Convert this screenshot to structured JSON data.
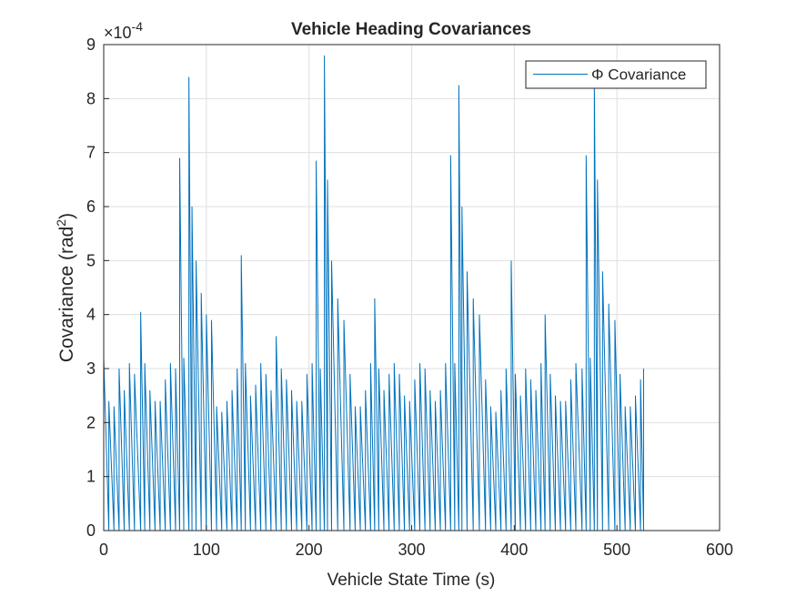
{
  "chart_data": {
    "type": "line",
    "title": "Vehicle Heading Covariances",
    "xlabel": "Vehicle State Time (s)",
    "ylabel": {
      "text": "Covariance (rad",
      "sup": "2",
      "end": ")"
    },
    "y_exponent": {
      "base": "×10",
      "power": "-4"
    },
    "xlim": [
      0,
      600
    ],
    "xticks": [
      0,
      100,
      200,
      300,
      400,
      500,
      600
    ],
    "ylim": [
      0,
      9
    ],
    "yticks": [
      0,
      1,
      2,
      3,
      4,
      5,
      6,
      7,
      8,
      9
    ],
    "grid": true,
    "legend": "northeast",
    "x": [
      0,
      0,
      5,
      5,
      10,
      10,
      15,
      15,
      20,
      20,
      25,
      25,
      30,
      30,
      36,
      36,
      40,
      40,
      45,
      45,
      50,
      50,
      55,
      55,
      60,
      60,
      65,
      65,
      70,
      70,
      74,
      74,
      78,
      78,
      83,
      83,
      86,
      86,
      90,
      90,
      95,
      95,
      100,
      100,
      105,
      105,
      110,
      110,
      115,
      115,
      120,
      120,
      125,
      125,
      130,
      130,
      134,
      134,
      138,
      138,
      143,
      143,
      148,
      148,
      153,
      153,
      158,
      158,
      163,
      163,
      168,
      168,
      173,
      173,
      178,
      178,
      183,
      183,
      188,
      188,
      193,
      193,
      198,
      198,
      203,
      203,
      207,
      207,
      211,
      211,
      215,
      215,
      218,
      218,
      222,
      222,
      228,
      228,
      234,
      234,
      240,
      240,
      245,
      245,
      250,
      250,
      255,
      255,
      260,
      260,
      264,
      264,
      268,
      268,
      273,
      273,
      278,
      278,
      283,
      283,
      288,
      288,
      293,
      293,
      298,
      298,
      303,
      303,
      308,
      308,
      313,
      313,
      318,
      318,
      323,
      323,
      328,
      328,
      333,
      333,
      338,
      338,
      342,
      342,
      346,
      346,
      349,
      349,
      354,
      354,
      360,
      360,
      366,
      366,
      372,
      372,
      377,
      377,
      382,
      382,
      387,
      387,
      392,
      392,
      397,
      397,
      401,
      401,
      406,
      406,
      411,
      411,
      416,
      416,
      421,
      421,
      426,
      426,
      430,
      430,
      435,
      435,
      440,
      440,
      445,
      445,
      450,
      450,
      455,
      455,
      460,
      460,
      466,
      466,
      470,
      470,
      474,
      474,
      478,
      478,
      481,
      481,
      486,
      486,
      492,
      492,
      498,
      498,
      503,
      503,
      508,
      508,
      513,
      513,
      518,
      518,
      523,
      523,
      526,
      526,
      526
    ],
    "series": [
      {
        "name": "Φ Covariance",
        "color": "#0072bd",
        "values": [
          0,
          3.2,
          0,
          2.4,
          0,
          2.3,
          0,
          3.0,
          0,
          2.6,
          0,
          3.1,
          0,
          2.9,
          0,
          4.05,
          0,
          3.1,
          0,
          2.6,
          0,
          2.4,
          0,
          2.4,
          0,
          2.8,
          0,
          3.1,
          0,
          3.0,
          0,
          6.9,
          0,
          3.2,
          0,
          8.4,
          0,
          6.0,
          0,
          5.0,
          0,
          4.4,
          0,
          4.0,
          0,
          3.9,
          0,
          2.3,
          0,
          2.2,
          0,
          2.4,
          0,
          2.6,
          0,
          3.0,
          0,
          5.1,
          0,
          3.1,
          0,
          2.5,
          0,
          2.7,
          0,
          3.1,
          0,
          2.9,
          0,
          2.6,
          0,
          3.6,
          0,
          3.0,
          0,
          2.8,
          0,
          2.6,
          0,
          2.4,
          0,
          2.4,
          0,
          2.9,
          0,
          3.1,
          0,
          6.85,
          0,
          3.0,
          0,
          8.8,
          0,
          6.5,
          0,
          5.0,
          0,
          4.3,
          0,
          3.9,
          0,
          2.9,
          0,
          2.3,
          0,
          2.3,
          0,
          2.6,
          0,
          3.1,
          0,
          4.3,
          0,
          3.0,
          0,
          2.6,
          0,
          2.9,
          0,
          3.1,
          0,
          2.9,
          0,
          2.5,
          0,
          2.4,
          0,
          2.8,
          0,
          3.1,
          0,
          3.0,
          0,
          2.6,
          0,
          2.4,
          0,
          2.6,
          0,
          3.1,
          0,
          6.95,
          0,
          3.1,
          0,
          8.25,
          0,
          6.0,
          0,
          4.8,
          0,
          4.3,
          0,
          4.0,
          0,
          2.8,
          0,
          2.3,
          0,
          2.2,
          0,
          2.6,
          0,
          3.0,
          0,
          5.0,
          0,
          2.9,
          0,
          2.5,
          0,
          3.0,
          0,
          2.8,
          0,
          2.6,
          0,
          3.1,
          0,
          4.0,
          0,
          2.9,
          0,
          2.5,
          0,
          2.4,
          0,
          2.4,
          0,
          2.8,
          0,
          3.1,
          0,
          3.0,
          0,
          6.95,
          0,
          3.2,
          0,
          8.3,
          0,
          6.5,
          0,
          4.8,
          0,
          4.2,
          0,
          3.9,
          0,
          2.9,
          0,
          2.3,
          0,
          2.3,
          0,
          2.5,
          0,
          2.8,
          0,
          3.0,
          0
        ]
      }
    ]
  }
}
